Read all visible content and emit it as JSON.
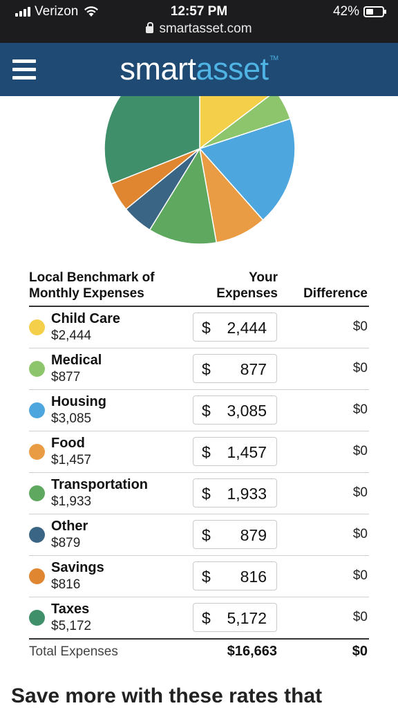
{
  "status_bar": {
    "carrier": "Verizon",
    "time": "12:57 PM",
    "battery": "42%",
    "url": "smartasset.com"
  },
  "header": {
    "logo_part1": "smart",
    "logo_part2": "asset",
    "logo_tm": "TM"
  },
  "colors": {
    "header_bg": "#1e4a73",
    "logo_accent": "#4fb3e4"
  },
  "table": {
    "header_benchmark_line1": "Local Benchmark of",
    "header_benchmark_line2": "Monthly Expenses",
    "header_yours_line1": "Your",
    "header_yours_line2": "Expenses",
    "header_difference": "Difference",
    "currency_symbol": "$",
    "rows": [
      {
        "category": "Child Care",
        "benchmark": "$2,444",
        "your_expense": "2,444",
        "difference": "$0",
        "color": "#f4d04a"
      },
      {
        "category": "Medical",
        "benchmark": "$877",
        "your_expense": "877",
        "difference": "$0",
        "color": "#8dc56c"
      },
      {
        "category": "Housing",
        "benchmark": "$3,085",
        "your_expense": "3,085",
        "difference": "$0",
        "color": "#4ea6de"
      },
      {
        "category": "Food",
        "benchmark": "$1,457",
        "your_expense": "1,457",
        "difference": "$0",
        "color": "#e99c43"
      },
      {
        "category": "Transportation",
        "benchmark": "$1,933",
        "your_expense": "1,933",
        "difference": "$0",
        "color": "#5ea85f"
      },
      {
        "category": "Other",
        "benchmark": "$879",
        "your_expense": "879",
        "difference": "$0",
        "color": "#3a6584"
      },
      {
        "category": "Savings",
        "benchmark": "$816",
        "your_expense": "816",
        "difference": "$0",
        "color": "#e08631"
      },
      {
        "category": "Taxes",
        "benchmark": "$5,172",
        "your_expense": "5,172",
        "difference": "$0",
        "color": "#3f8f6a"
      }
    ],
    "total_label": "Total Expenses",
    "total_value": "$16,663",
    "total_difference": "$0"
  },
  "promo_heading": "Save more with these rates that",
  "chart_data": {
    "type": "pie",
    "categories": [
      "Child Care",
      "Medical",
      "Housing",
      "Food",
      "Transportation",
      "Other",
      "Savings",
      "Taxes"
    ],
    "values": [
      2444,
      877,
      3085,
      1457,
      1933,
      879,
      816,
      5172
    ],
    "colors": [
      "#f4d04a",
      "#8dc56c",
      "#4ea6de",
      "#e99c43",
      "#5ea85f",
      "#3a6584",
      "#e08631",
      "#3f8f6a"
    ]
  }
}
